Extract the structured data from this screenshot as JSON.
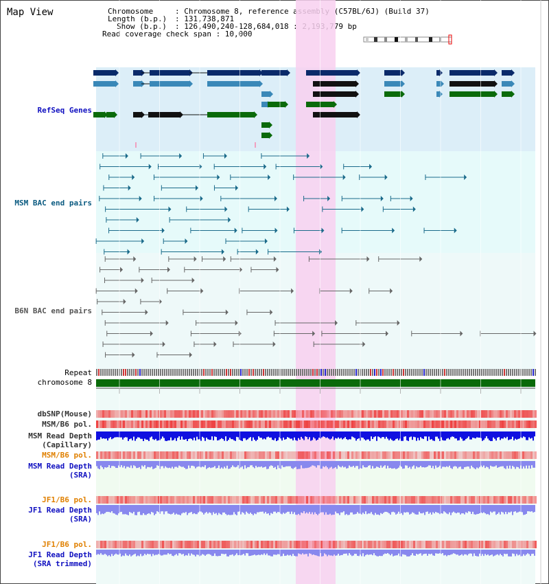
{
  "title": "Map View",
  "info": {
    "chromosome_key": "Chromosome",
    "chromosome_val": ": Chromosome 8, reference assembly (C57BL/6J) (Build 37)",
    "length_key": "Length (b.p.)",
    "length_val": ": 131,738,871",
    "show_key": "Show (b.p.)",
    "show_val": ": 126,490,240-128,684,018 : 2,193,779 bp",
    "coverage": "Read coverage check span : 10,000"
  },
  "tracks": {
    "refseq": "RefSeq Genes",
    "msm_bac": "MSM BAC end pairs",
    "b6n_bac": "B6N BAC end pairs",
    "repeat": "Repeat",
    "chromosome": "chromosome 8",
    "dbsnp": "dbSNP(Mouse)",
    "msm_b6_pol": "MSM/B6 pol.",
    "msm_read_depth_cap_1": "MSM Read Depth",
    "msm_read_depth_cap_2": "(Capillary)",
    "msm_b6_pol_2": "MSM/B6 pol.",
    "msm_read_depth_sra_1": "MSM Read Depth",
    "msm_read_depth_sra_2": "(SRA)",
    "jf1_b6_pol": "JF1/B6 pol.",
    "jf1_read_depth_1": "JF1 Read Depth",
    "jf1_read_depth_2": "(SRA)",
    "jf1_b6_pol_2": "JF1/B6 pol.",
    "jf1_trim_1": "JF1 Read Depth",
    "jf1_trim_2": "(SRA trimmed)"
  },
  "axis_ticks": [
    "126800000",
    "127200000",
    "127600000",
    "128000000",
    "128400000"
  ],
  "colors": {
    "refseq_dark": "#0a2a6a",
    "refseq_mid": "#3a88b8",
    "refseq_green": "#0a6a0a",
    "highlight": "#f8d0f0",
    "bac_msm": "#1a6a8a",
    "bac_b6n": "#666666",
    "chrom_bar": "#0a6a0a",
    "depth_capillary": "#1010e0",
    "depth_sra": "#8888ee",
    "pol": "#ee4444"
  }
}
